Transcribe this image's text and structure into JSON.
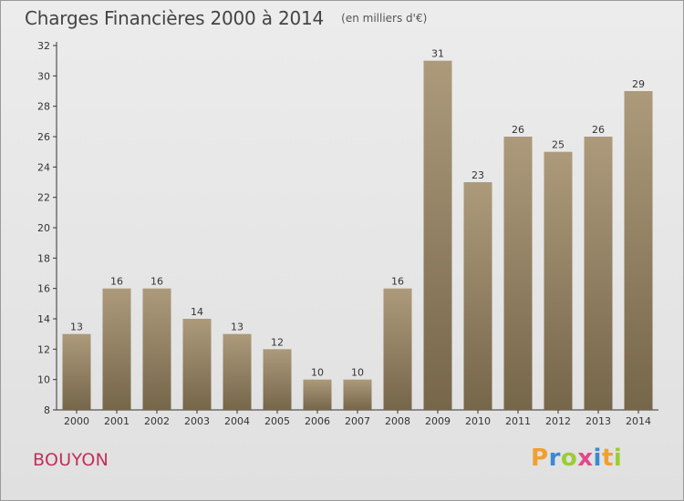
{
  "header": {
    "title": "Charges Financières 2000 à 2014",
    "subtitle": "(en milliers d'€)"
  },
  "footer": {
    "commune": "BOUYON",
    "logo_text": "Proxiti"
  },
  "colors": {
    "bar_top": "#ac9a7b",
    "bar_bottom": "#76664a",
    "axis": "#333333",
    "commune": "#c0305a",
    "logo_letters": [
      "#f0a030",
      "#3a8ad0",
      "#9acd32",
      "#e04a8a",
      "#3a8ad0",
      "#f0a030",
      "#9acd32"
    ]
  },
  "chart_data": {
    "type": "bar",
    "categories": [
      "2000",
      "2001",
      "2002",
      "2003",
      "2004",
      "2005",
      "2006",
      "2007",
      "2008",
      "2009",
      "2010",
      "2011",
      "2012",
      "2013",
      "2014"
    ],
    "values": [
      13,
      16,
      16,
      14,
      13,
      12,
      10,
      10,
      16,
      31,
      23,
      26,
      25,
      26,
      29
    ],
    "ylim": [
      8,
      32
    ],
    "yticks": [
      8,
      10,
      12,
      14,
      16,
      18,
      20,
      22,
      24,
      26,
      28,
      30,
      32
    ],
    "xlabel": "",
    "ylabel": "",
    "grid": false
  }
}
